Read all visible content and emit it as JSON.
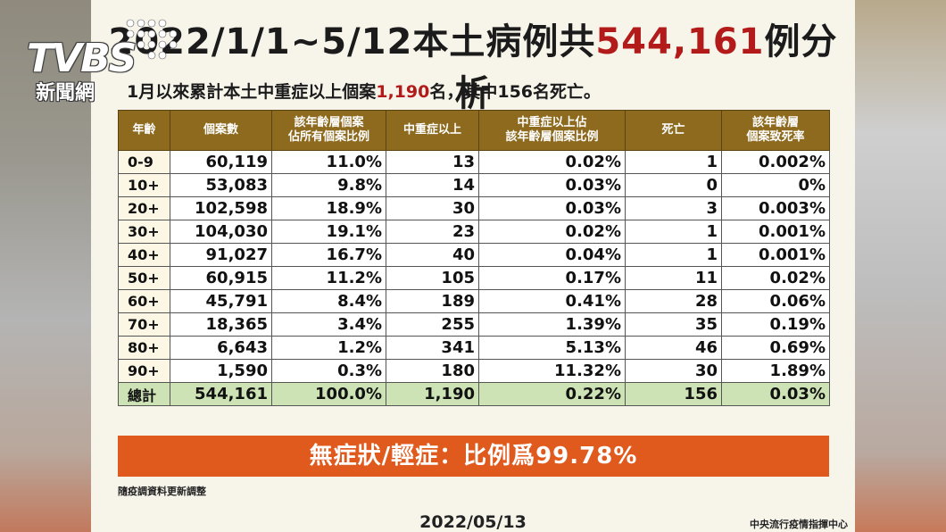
{
  "logo": {
    "brand": "TVBS",
    "subtitle": "新聞網"
  },
  "title": {
    "prefix": "2022/1/1~5/12本土病例共",
    "highlight": "544,161",
    "suffix": "例分析"
  },
  "subtitle": {
    "prefix": "1月以來累計本土中重症以上個案",
    "highlight": "1,190",
    "suffix": "名，其中156名死亡。"
  },
  "table": {
    "headers": [
      "年齡",
      "個案數",
      "該年齡層個案\n佔所有個案比例",
      "中重症以上",
      "中重症以上佔\n該年齡層個案比例",
      "死亡",
      "該年齡層\n個案致死率"
    ],
    "rows": [
      [
        "0-9",
        "60,119",
        "11.0%",
        "13",
        "0.02%",
        "1",
        "0.002%"
      ],
      [
        "10+",
        "53,083",
        "9.8%",
        "14",
        "0.03%",
        "0",
        "0%"
      ],
      [
        "20+",
        "102,598",
        "18.9%",
        "30",
        "0.03%",
        "3",
        "0.003%"
      ],
      [
        "30+",
        "104,030",
        "19.1%",
        "23",
        "0.02%",
        "1",
        "0.001%"
      ],
      [
        "40+",
        "91,027",
        "16.7%",
        "40",
        "0.04%",
        "1",
        "0.001%"
      ],
      [
        "50+",
        "60,915",
        "11.2%",
        "105",
        "0.17%",
        "11",
        "0.02%"
      ],
      [
        "60+",
        "45,791",
        "8.4%",
        "189",
        "0.41%",
        "28",
        "0.06%"
      ],
      [
        "70+",
        "18,365",
        "3.4%",
        "255",
        "1.39%",
        "35",
        "0.19%"
      ],
      [
        "80+",
        "6,643",
        "1.2%",
        "341",
        "5.13%",
        "46",
        "0.69%"
      ],
      [
        "90+",
        "1,590",
        "0.3%",
        "180",
        "11.32%",
        "30",
        "1.89%"
      ]
    ],
    "total": [
      "總計",
      "544,161",
      "100.0%",
      "1,190",
      "0.22%",
      "156",
      "0.03%"
    ]
  },
  "banner": "無症狀/輕症：比例爲99.78%",
  "note": "隨疫調資料更新調整",
  "date": "2022/05/13",
  "org": "中央流行疫情指揮中心",
  "colors": {
    "header_bg": "#8d6a1e",
    "highlight": "#b31b1b",
    "banner_bg": "#e05a1d",
    "total_bg": "#cde3b6"
  }
}
